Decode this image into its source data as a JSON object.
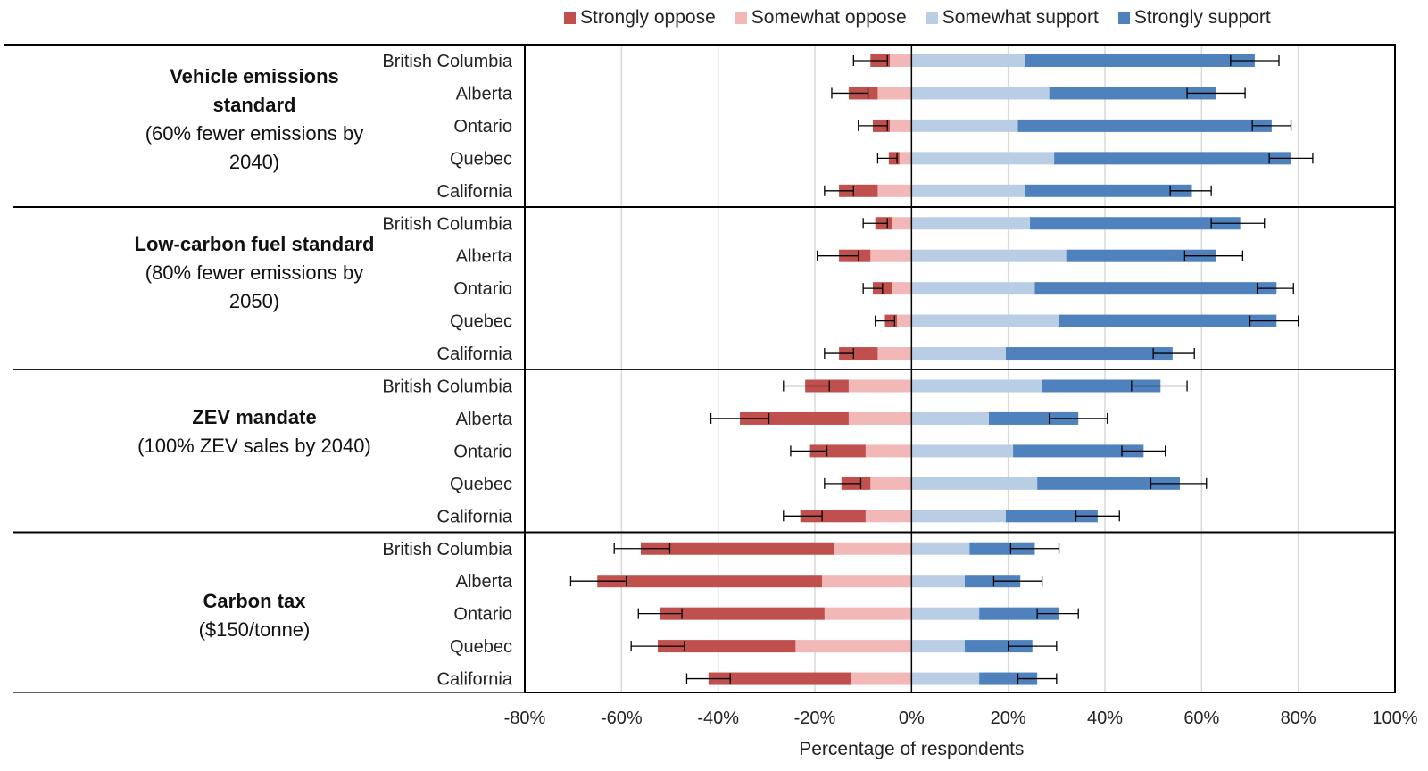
{
  "legend": {
    "strongly_oppose": "Strongly oppose",
    "somewhat_oppose": "Somewhat oppose",
    "somewhat_support": "Somewhat support",
    "strongly_support": "Strongly support"
  },
  "colors": {
    "strongly_oppose": "#c0504d",
    "somewhat_oppose": "#f2b8b7",
    "somewhat_support": "#b9cde5",
    "strongly_support": "#4f81bd"
  },
  "groups": [
    {
      "title": "Vehicle emissions standard",
      "subtitle": "(60% fewer emissions by 2040)"
    },
    {
      "title": "Low-carbon fuel standard",
      "subtitle": "(80% fewer emissions by 2050)"
    },
    {
      "title": "ZEV mandate",
      "subtitle": "(100% ZEV sales by 2040)"
    },
    {
      "title": "Carbon tax",
      "subtitle": "($150/tonne)"
    }
  ],
  "chart_data": {
    "type": "bar",
    "orientation": "horizontal",
    "stacked": "diverging",
    "xlabel": "Percentage of respondents",
    "xlim": [
      -80,
      100
    ],
    "xticks": [
      -80,
      -60,
      -40,
      -20,
      0,
      20,
      40,
      60,
      80,
      100
    ],
    "xtick_labels": [
      "-80%",
      "-60%",
      "-40%",
      "-20%",
      "0%",
      "20%",
      "40%",
      "60%",
      "80%",
      "100%"
    ],
    "series": [
      "Strongly oppose",
      "Somewhat oppose",
      "Somewhat support",
      "Strongly support"
    ],
    "rows": [
      {
        "group": "Vehicle emissions standard",
        "region": "British Columbia",
        "somewhat_oppose": 4.5,
        "strongly_oppose": 4,
        "somewhat_support": 23.5,
        "strongly_support": 47.5,
        "oppose_err": [
          12,
          5
        ],
        "support_err": [
          66,
          76
        ]
      },
      {
        "group": "Vehicle emissions standard",
        "region": "Alberta",
        "somewhat_oppose": 7,
        "strongly_oppose": 6,
        "somewhat_support": 28.5,
        "strongly_support": 34.5,
        "oppose_err": [
          16.5,
          9
        ],
        "support_err": [
          57,
          69
        ]
      },
      {
        "group": "Vehicle emissions standard",
        "region": "Ontario",
        "somewhat_oppose": 4.5,
        "strongly_oppose": 3.5,
        "somewhat_support": 22,
        "strongly_support": 52.5,
        "oppose_err": [
          11,
          5
        ],
        "support_err": [
          70.5,
          78.5
        ]
      },
      {
        "group": "Vehicle emissions standard",
        "region": "Quebec",
        "somewhat_oppose": 2.5,
        "strongly_oppose": 2.2,
        "somewhat_support": 29.5,
        "strongly_support": 49,
        "oppose_err": [
          7,
          3
        ],
        "support_err": [
          74,
          83
        ]
      },
      {
        "group": "Vehicle emissions standard",
        "region": "California",
        "somewhat_oppose": 7,
        "strongly_oppose": 8,
        "somewhat_support": 23.5,
        "strongly_support": 34.5,
        "oppose_err": [
          18,
          12
        ],
        "support_err": [
          53.5,
          62
        ]
      },
      {
        "group": "Low-carbon fuel standard",
        "region": "British Columbia",
        "somewhat_oppose": 4,
        "strongly_oppose": 3.5,
        "somewhat_support": 24.5,
        "strongly_support": 43.5,
        "oppose_err": [
          10,
          5
        ],
        "support_err": [
          62,
          73
        ]
      },
      {
        "group": "Low-carbon fuel standard",
        "region": "Alberta",
        "somewhat_oppose": 8.5,
        "strongly_oppose": 6.5,
        "somewhat_support": 32,
        "strongly_support": 31,
        "oppose_err": [
          19.5,
          11
        ],
        "support_err": [
          56.5,
          68.5
        ]
      },
      {
        "group": "Low-carbon fuel standard",
        "region": "Ontario",
        "somewhat_oppose": 4,
        "strongly_oppose": 4,
        "somewhat_support": 25.5,
        "strongly_support": 50,
        "oppose_err": [
          10,
          6
        ],
        "support_err": [
          71.5,
          79
        ]
      },
      {
        "group": "Low-carbon fuel standard",
        "region": "Quebec",
        "somewhat_oppose": 3,
        "strongly_oppose": 2.5,
        "somewhat_support": 30.5,
        "strongly_support": 45,
        "oppose_err": [
          7.5,
          3.5
        ],
        "support_err": [
          70,
          80
        ]
      },
      {
        "group": "Low-carbon fuel standard",
        "region": "California",
        "somewhat_oppose": 7,
        "strongly_oppose": 8,
        "somewhat_support": 19.5,
        "strongly_support": 34.5,
        "oppose_err": [
          18,
          12
        ],
        "support_err": [
          50,
          58.5
        ]
      },
      {
        "group": "ZEV mandate",
        "region": "British Columbia",
        "somewhat_oppose": 13,
        "strongly_oppose": 9,
        "somewhat_support": 27,
        "strongly_support": 24.5,
        "oppose_err": [
          26.5,
          17
        ],
        "support_err": [
          45.5,
          57
        ]
      },
      {
        "group": "ZEV mandate",
        "region": "Alberta",
        "somewhat_oppose": 13,
        "strongly_oppose": 22.5,
        "somewhat_support": 16,
        "strongly_support": 18.5,
        "oppose_err": [
          41.5,
          29.5
        ],
        "support_err": [
          28.5,
          40.5
        ]
      },
      {
        "group": "ZEV mandate",
        "region": "Ontario",
        "somewhat_oppose": 9.5,
        "strongly_oppose": 11.5,
        "somewhat_support": 21,
        "strongly_support": 27,
        "oppose_err": [
          25,
          17.5
        ],
        "support_err": [
          43.5,
          52.5
        ]
      },
      {
        "group": "ZEV mandate",
        "region": "Quebec",
        "somewhat_oppose": 8.5,
        "strongly_oppose": 6,
        "somewhat_support": 26,
        "strongly_support": 29.5,
        "oppose_err": [
          18,
          10.5
        ],
        "support_err": [
          49.5,
          61
        ]
      },
      {
        "group": "ZEV mandate",
        "region": "California",
        "somewhat_oppose": 9.5,
        "strongly_oppose": 13.5,
        "somewhat_support": 19.5,
        "strongly_support": 19,
        "oppose_err": [
          26.5,
          18.5
        ],
        "support_err": [
          34,
          43
        ]
      },
      {
        "group": "Carbon tax",
        "region": "British Columbia",
        "somewhat_oppose": 16,
        "strongly_oppose": 40,
        "somewhat_support": 12,
        "strongly_support": 13.5,
        "oppose_err": [
          61.5,
          50
        ],
        "support_err": [
          20.5,
          30.5
        ]
      },
      {
        "group": "Carbon tax",
        "region": "Alberta",
        "somewhat_oppose": 18.5,
        "strongly_oppose": 46.5,
        "somewhat_support": 11,
        "strongly_support": 11.5,
        "oppose_err": [
          70.5,
          59
        ],
        "support_err": [
          17,
          27
        ]
      },
      {
        "group": "Carbon tax",
        "region": "Ontario",
        "somewhat_oppose": 18,
        "strongly_oppose": 34,
        "somewhat_support": 14,
        "strongly_support": 16.5,
        "oppose_err": [
          56.5,
          47.5
        ],
        "support_err": [
          26,
          34.5
        ]
      },
      {
        "group": "Carbon tax",
        "region": "Quebec",
        "somewhat_oppose": 24,
        "strongly_oppose": 28.5,
        "somewhat_support": 11,
        "strongly_support": 14,
        "oppose_err": [
          58,
          47
        ],
        "support_err": [
          20,
          30
        ]
      },
      {
        "group": "Carbon tax",
        "region": "California",
        "somewhat_oppose": 12.5,
        "strongly_oppose": 29.5,
        "somewhat_support": 14,
        "strongly_support": 12,
        "oppose_err": [
          46.5,
          37.5
        ],
        "support_err": [
          22,
          30
        ]
      }
    ]
  }
}
